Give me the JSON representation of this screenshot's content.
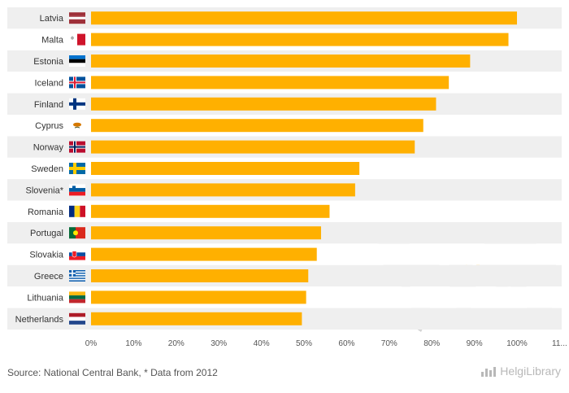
{
  "chart_data": {
    "type": "bar",
    "orientation": "horizontal",
    "categories": [
      "Latvia",
      "Malta",
      "Estonia",
      "Iceland",
      "Finland",
      "Cyprus",
      "Norway",
      "Sweden",
      "Slovenia*",
      "Romania",
      "Portugal",
      "Slovakia",
      "Greece",
      "Lithuania",
      "Netherlands"
    ],
    "values": [
      100,
      98,
      89,
      84,
      81,
      78,
      76,
      63,
      62,
      56,
      54,
      53,
      51,
      50.5,
      49.5
    ],
    "xlim": [
      0,
      110
    ],
    "x_ticks": [
      "0%",
      "10%",
      "20%",
      "30%",
      "40%",
      "50%",
      "60%",
      "70%",
      "80%",
      "90%",
      "100%",
      "11..."
    ],
    "bar_color": "#ffb000",
    "grid": false
  },
  "flags": [
    "latvia-flag-icon",
    "malta-flag-icon",
    "estonia-flag-icon",
    "iceland-flag-icon",
    "finland-flag-icon",
    "cyprus-flag-icon",
    "norway-flag-icon",
    "sweden-flag-icon",
    "slovenia-flag-icon",
    "romania-flag-icon",
    "portugal-flag-icon",
    "slovakia-flag-icon",
    "greece-flag-icon",
    "lithuania-flag-icon",
    "netherlands-flag-icon"
  ],
  "footer": {
    "source": "Source: National Central Bank, * Data from 2012",
    "logo_text": "HelgiLibrary"
  }
}
